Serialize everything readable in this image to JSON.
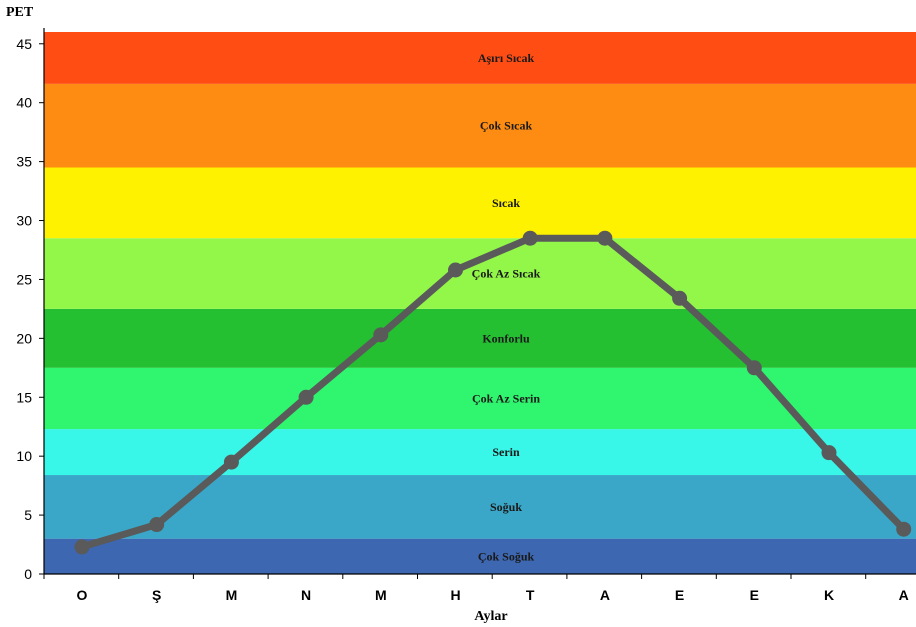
{
  "chart_data": {
    "type": "line",
    "ylabel": "PET",
    "xlabel": "Aylar",
    "ylim": [
      0,
      46
    ],
    "yticks": [
      0,
      5,
      10,
      15,
      20,
      25,
      30,
      35,
      40,
      45
    ],
    "categories": [
      "O",
      "Ş",
      "M",
      "N",
      "M",
      "H",
      "T",
      "A",
      "E",
      "E",
      "K",
      "A"
    ],
    "series": [
      {
        "values": [
          2.3,
          4.2,
          9.5,
          15.0,
          20.3,
          25.8,
          28.5,
          28.5,
          23.4,
          17.5,
          10.3,
          3.8
        ],
        "color": "#5a5a5a"
      }
    ],
    "bands": [
      {
        "label": "Çok Soğuk",
        "from": 0,
        "to": 3.0,
        "color": "#3d67b0"
      },
      {
        "label": "Soğuk",
        "from": 3.0,
        "to": 8.4,
        "color": "#3aa7c8"
      },
      {
        "label": "Serin",
        "from": 8.4,
        "to": 12.3,
        "color": "#38f6e8"
      },
      {
        "label": "Çok Az Serin",
        "from": 12.3,
        "to": 17.5,
        "color": "#2ff56f"
      },
      {
        "label": "Konforlu",
        "from": 17.5,
        "to": 22.5,
        "color": "#24c032"
      },
      {
        "label": "Çok Az Sıcak",
        "from": 22.5,
        "to": 28.5,
        "color": "#93f74a"
      },
      {
        "label": "Sıcak",
        "from": 28.5,
        "to": 34.5,
        "color": "#fff200"
      },
      {
        "label": "Çok Sıcak",
        "from": 34.5,
        "to": 41.6,
        "color": "#ff8c12"
      },
      {
        "label": "Aşırı Sıcak",
        "from": 41.6,
        "to": 46,
        "color": "#ff4d14"
      }
    ],
    "grid": false,
    "legend": "none"
  }
}
